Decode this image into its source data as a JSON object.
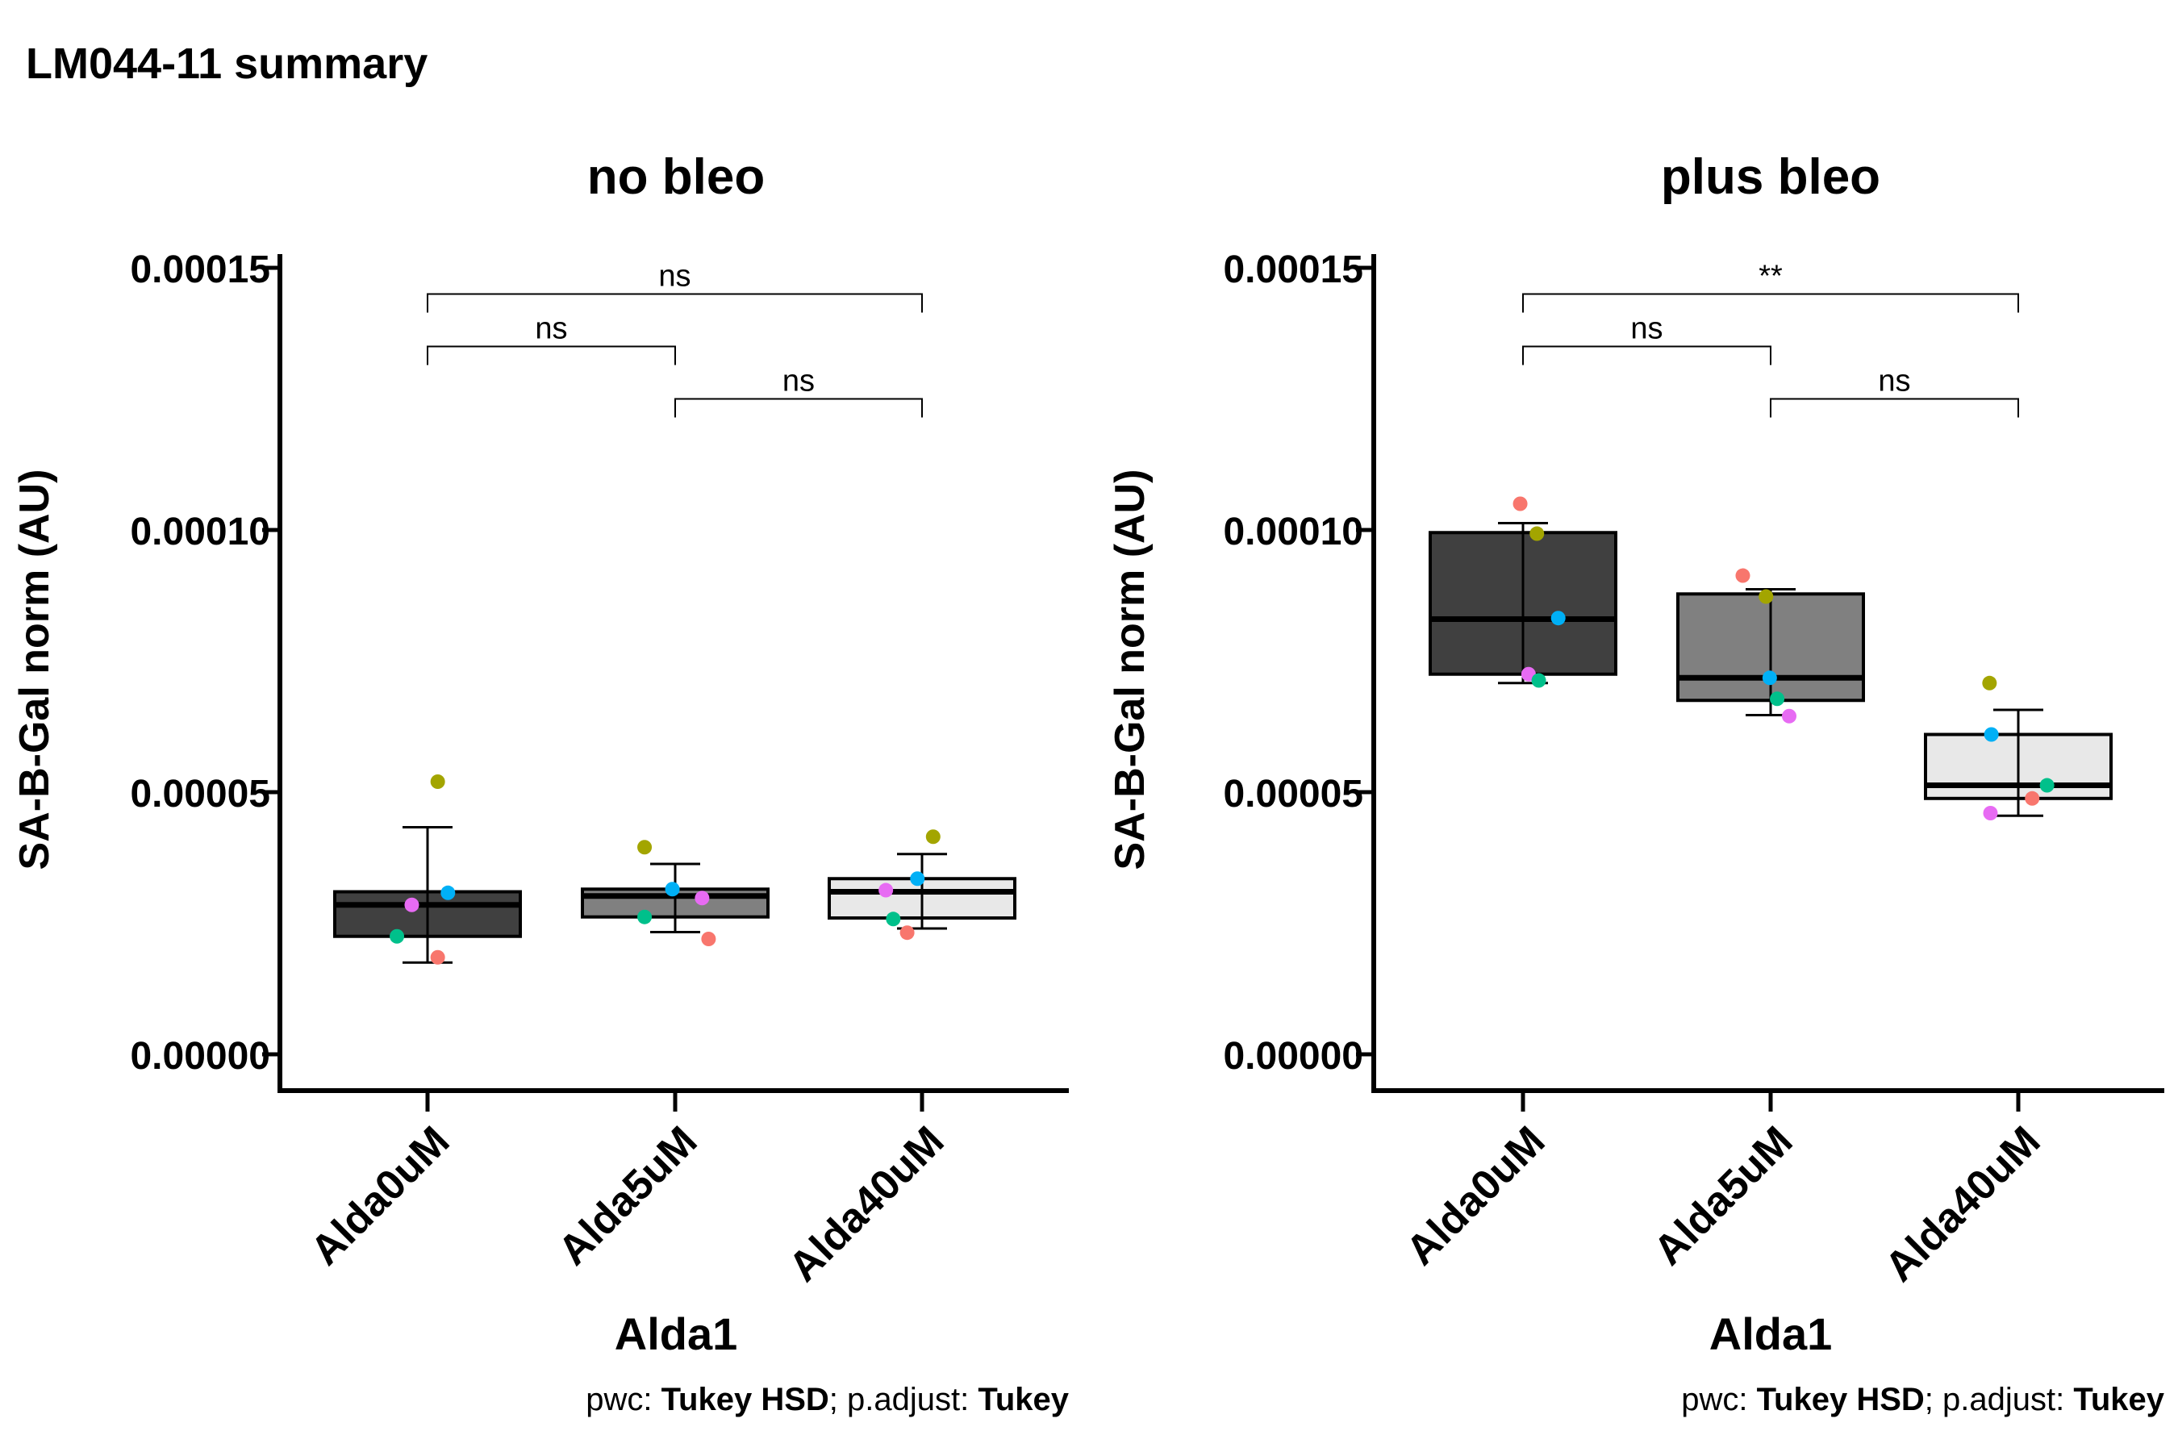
{
  "title": "LM044-11 summary",
  "chart_data": [
    {
      "type": "box",
      "title": "no bleo",
      "xlabel": "Alda1",
      "ylabel": "SA-B-Gal norm (AU)",
      "ylim": [
        0,
        0.00015
      ],
      "yticks": [
        "0.00000",
        "0.00005",
        "0.00010",
        "0.00015"
      ],
      "caption": {
        "pwc_label": "pwc: ",
        "pwc_value": "Tukey HSD",
        "sep": "; p.adjust: ",
        "adj_value": "Tukey"
      },
      "categories": [
        "Alda0uM",
        "Alda5uM",
        "Alda40uM"
      ],
      "fills": [
        "#404040",
        "#808080",
        "#e8e8e8"
      ],
      "boxes": [
        {
          "q1": 2.25e-05,
          "median": 2.85e-05,
          "q3": 3.1e-05,
          "mean": 3.05e-05,
          "err_low": 1.75e-05,
          "err_high": 4.33e-05
        },
        {
          "q1": 2.62e-05,
          "median": 3.02e-05,
          "q3": 3.15e-05,
          "mean": 2.98e-05,
          "err_low": 2.33e-05,
          "err_high": 3.63e-05
        },
        {
          "q1": 2.6e-05,
          "median": 3.1e-05,
          "q3": 3.35e-05,
          "mean": 3.1e-05,
          "err_low": 2.4e-05,
          "err_high": 3.82e-05
        }
      ],
      "points": [
        [
          {
            "o": -0.33,
            "v": 2.25e-05,
            "c": "#00c08b"
          },
          {
            "o": -0.17,
            "v": 2.85e-05,
            "c": "#e76bf3"
          },
          {
            "o": 0.11,
            "v": 1.85e-05,
            "c": "#f8766d"
          },
          {
            "o": 0.11,
            "v": 5.2e-05,
            "c": "#a3a500"
          },
          {
            "o": 0.22,
            "v": 3.08e-05,
            "c": "#00b0f6"
          }
        ],
        [
          {
            "o": -0.33,
            "v": 2.62e-05,
            "c": "#00c08b"
          },
          {
            "o": -0.33,
            "v": 3.95e-05,
            "c": "#a3a500"
          },
          {
            "o": -0.03,
            "v": 3.15e-05,
            "c": "#00b0f6"
          },
          {
            "o": 0.29,
            "v": 2.98e-05,
            "c": "#e76bf3"
          },
          {
            "o": 0.36,
            "v": 2.2e-05,
            "c": "#f8766d"
          }
        ],
        [
          {
            "o": -0.39,
            "v": 3.13e-05,
            "c": "#e76bf3"
          },
          {
            "o": -0.31,
            "v": 2.58e-05,
            "c": "#00c08b"
          },
          {
            "o": -0.16,
            "v": 2.32e-05,
            "c": "#f8766d"
          },
          {
            "o": -0.05,
            "v": 3.35e-05,
            "c": "#00b0f6"
          },
          {
            "o": 0.12,
            "v": 4.15e-05,
            "c": "#a3a500"
          }
        ]
      ],
      "brackets": [
        {
          "from": 0,
          "to": 2,
          "y": 0.000145,
          "label": "ns"
        },
        {
          "from": 0,
          "to": 1,
          "y": 0.000135,
          "label": "ns"
        },
        {
          "from": 1,
          "to": 2,
          "y": 0.000125,
          "label": "ns"
        }
      ]
    },
    {
      "type": "box",
      "title": "plus bleo",
      "xlabel": "Alda1",
      "ylabel": "SA-B-Gal norm (AU)",
      "ylim": [
        0,
        0.00015
      ],
      "yticks": [
        "0.00000",
        "0.00005",
        "0.00010",
        "0.00015"
      ],
      "caption": {
        "pwc_label": "pwc: ",
        "pwc_value": "Tukey HSD",
        "sep": "; p.adjust: ",
        "adj_value": "Tukey"
      },
      "categories": [
        "Alda0uM",
        "Alda5uM",
        "Alda40uM"
      ],
      "fills": [
        "#404040",
        "#808080",
        "#e8e8e8"
      ],
      "boxes": [
        {
          "q1": 7.25e-05,
          "median": 8.3e-05,
          "q3": 9.95e-05,
          "mean": 8.6e-05,
          "err_low": 7.08e-05,
          "err_high": 0.0001013
        },
        {
          "q1": 6.75e-05,
          "median": 7.18e-05,
          "q3": 8.78e-05,
          "mean": 7.66e-05,
          "err_low": 6.47e-05,
          "err_high": 8.87e-05
        },
        {
          "q1": 4.88e-05,
          "median": 5.13e-05,
          "q3": 6.1e-05,
          "mean": 5.56e-05,
          "err_low": 4.55e-05,
          "err_high": 6.57e-05
        }
      ],
      "points": [
        [
          {
            "o": -0.03,
            "v": 0.000105,
            "c": "#f8766d"
          },
          {
            "o": 0.15,
            "v": 9.93e-05,
            "c": "#a3a500"
          },
          {
            "o": 0.06,
            "v": 7.25e-05,
            "c": "#e76bf3"
          },
          {
            "o": 0.17,
            "v": 7.13e-05,
            "c": "#00c08b"
          },
          {
            "o": 0.38,
            "v": 8.32e-05,
            "c": "#00b0f6"
          }
        ],
        [
          {
            "o": -0.3,
            "v": 9.13e-05,
            "c": "#f8766d"
          },
          {
            "o": -0.05,
            "v": 8.73e-05,
            "c": "#a3a500"
          },
          {
            "o": -0.01,
            "v": 7.18e-05,
            "c": "#00b0f6"
          },
          {
            "o": 0.07,
            "v": 6.78e-05,
            "c": "#00c08b"
          },
          {
            "o": 0.2,
            "v": 6.45e-05,
            "c": "#e76bf3"
          }
        ],
        [
          {
            "o": -0.31,
            "v": 7.08e-05,
            "c": "#a3a500"
          },
          {
            "o": -0.29,
            "v": 6.1e-05,
            "c": "#00b0f6"
          },
          {
            "o": -0.3,
            "v": 4.6e-05,
            "c": "#e76bf3"
          },
          {
            "o": 0.15,
            "v": 4.88e-05,
            "c": "#f8766d"
          },
          {
            "o": 0.31,
            "v": 5.13e-05,
            "c": "#00c08b"
          }
        ]
      ],
      "brackets": [
        {
          "from": 0,
          "to": 2,
          "y": 0.000145,
          "label": "**"
        },
        {
          "from": 0,
          "to": 1,
          "y": 0.000135,
          "label": "ns"
        },
        {
          "from": 1,
          "to": 2,
          "y": 0.000125,
          "label": "ns"
        }
      ]
    }
  ]
}
